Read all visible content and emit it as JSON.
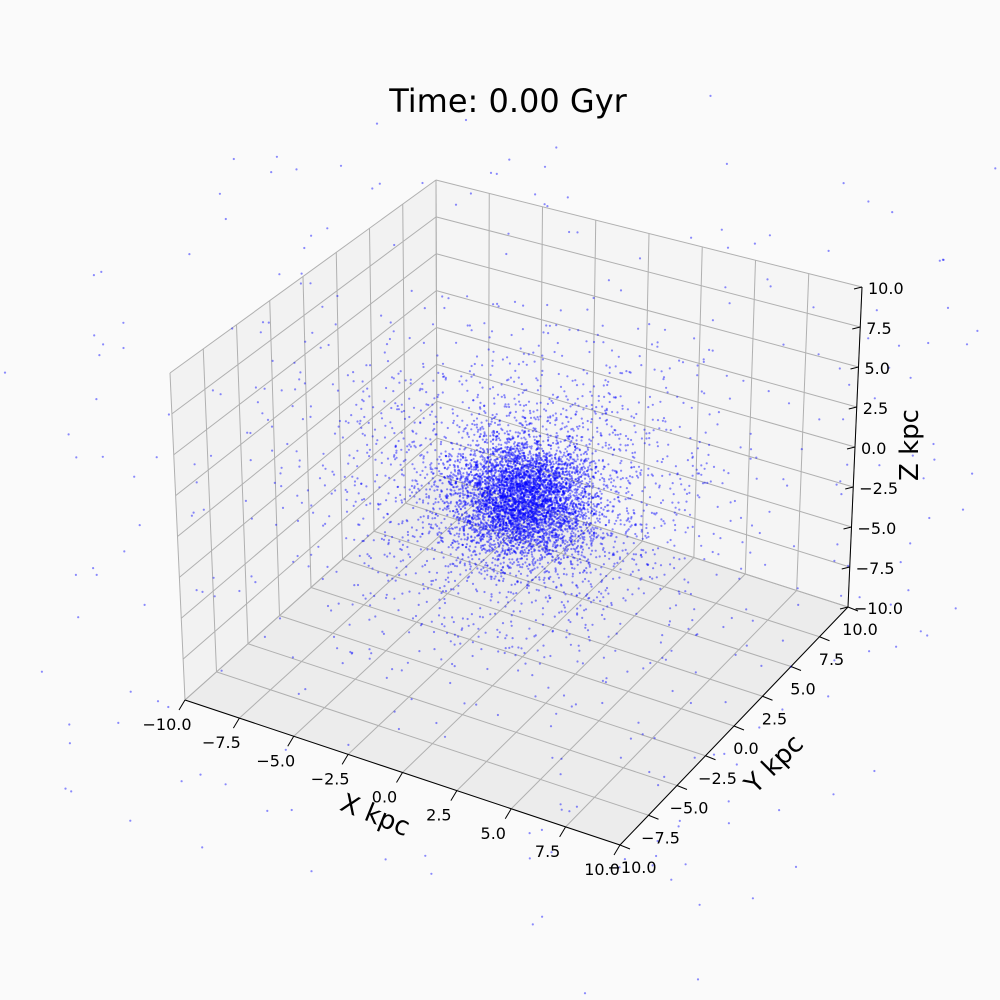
{
  "chart_data": {
    "type": "scatter",
    "projection": "3d",
    "title": "Time: 0.00 Gyr",
    "xlabel": "X kpc",
    "ylabel": "Y kpc",
    "zlabel": "Z kpc",
    "xlim": [
      -10,
      10
    ],
    "ylim": [
      -10,
      10
    ],
    "zlim": [
      -10,
      10
    ],
    "xticks": [
      "−10.0",
      "−7.5",
      "−5.0",
      "−2.5",
      "0.0",
      "2.5",
      "5.0",
      "7.5",
      "10.0"
    ],
    "yticks": [
      "−10.0",
      "−7.5",
      "−5.0",
      "−2.5",
      "0.0",
      "2.5",
      "5.0",
      "7.5",
      "10.0"
    ],
    "zticks": [
      "−10.0",
      "−7.5",
      "−5.0",
      "−2.5",
      "0.0",
      "2.5",
      "5.0",
      "7.5",
      "10.0"
    ],
    "grid": true,
    "point_color": "#0000ff",
    "point_alpha": 0.45,
    "distribution": {
      "kind": "gaussian-cluster-with-halo",
      "center": [
        0,
        0,
        0
      ],
      "n_core": 4200,
      "core_sigma_kpc": 1.4,
      "n_mid": 2200,
      "mid_sigma_kpc": 3.5,
      "n_halo": 450,
      "halo_extent_kpc": 16
    }
  }
}
